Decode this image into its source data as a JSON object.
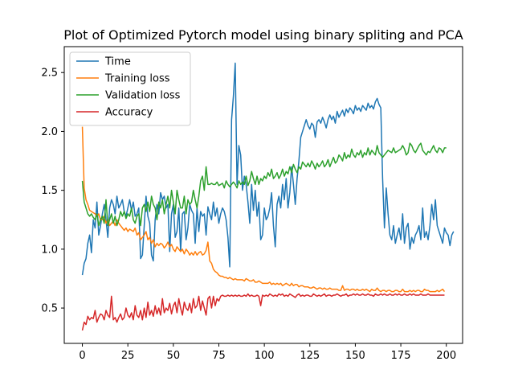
{
  "chart_data": {
    "type": "line",
    "title": "Plot of Optimized Pytorch model using binary spliting and PCA",
    "xlabel": "",
    "ylabel": "",
    "xlim": [
      -9.95,
      208.95
    ],
    "ylim": [
      0.2,
      2.72
    ],
    "xticks": [
      0,
      25,
      50,
      75,
      100,
      125,
      150,
      175,
      200
    ],
    "yticks": [
      0.5,
      1.0,
      1.5,
      2.0,
      2.5
    ],
    "ytick_labels": [
      "0.5",
      "1.0",
      "1.5",
      "2.0",
      "2.5"
    ],
    "grid": false,
    "legend_position": "top-left",
    "series": [
      {
        "name": "Time",
        "color": "#1f77b4",
        "values": [
          0.78,
          0.88,
          0.92,
          1.05,
          1.12,
          0.97,
          1.25,
          1.18,
          1.4,
          1.12,
          1.2,
          1.3,
          1.38,
          1.25,
          1.1,
          1.35,
          1.42,
          1.38,
          1.3,
          1.45,
          1.35,
          1.38,
          1.42,
          1.32,
          1.28,
          1.35,
          1.42,
          1.33,
          1.4,
          1.28,
          1.3,
          1.35,
          0.92,
          0.95,
          1.2,
          1.45,
          1.28,
          1.22,
          0.95,
          0.9,
          1.25,
          1.38,
          1.3,
          1.48,
          1.42,
          1.45,
          1.35,
          1.38,
          0.98,
          1.3,
          1.38,
          1.1,
          1.15,
          1.35,
          0.98,
          1.3,
          1.32,
          1.08,
          1.18,
          1.38,
          1.33,
          1.3,
          1.05,
          1.35,
          1.15,
          1.32,
          1.28,
          1.3,
          1.12,
          1.36,
          1.3,
          1.25,
          1.4,
          1.28,
          1.35,
          1.22,
          1.3,
          1.35,
          1.32,
          1.25,
          1.1,
          0.85,
          2.1,
          2.3,
          2.58,
          1.55,
          1.88,
          1.8,
          1.5,
          1.62,
          1.55,
          1.4,
          1.22,
          1.55,
          1.33,
          1.5,
          1.28,
          1.4,
          1.08,
          1.12,
          1.35,
          1.25,
          1.28,
          1.35,
          1.48,
          1.2,
          1.02,
          1.38,
          1.45,
          1.35,
          1.55,
          1.42,
          1.6,
          1.35,
          1.48,
          1.7,
          1.55,
          1.38,
          1.6,
          1.75,
          1.95,
          2.0,
          2.05,
          2.1,
          2.05,
          2.02,
          2.07,
          2.05,
          1.95,
          2.08,
          2.1,
          2.07,
          2.12,
          2.08,
          2.03,
          2.1,
          2.14,
          2.1,
          2.13,
          2.07,
          2.17,
          2.12,
          2.15,
          2.18,
          2.13,
          2.19,
          2.16,
          2.2,
          2.18,
          2.15,
          2.22,
          2.18,
          2.2,
          2.17,
          2.22,
          2.2,
          2.18,
          2.24,
          2.2,
          2.22,
          2.19,
          2.25,
          2.28,
          2.23,
          2.2,
          1.6,
          1.18,
          1.52,
          1.3,
          1.12,
          1.08,
          1.2,
          1.05,
          1.12,
          1.18,
          1.08,
          1.3,
          1.05,
          1.18,
          1.22,
          1.0,
          1.1,
          1.05,
          1.12,
          1.15,
          1.2,
          1.08,
          1.35,
          1.1,
          1.15,
          1.08,
          1.2,
          1.38,
          1.25,
          1.42,
          1.2,
          1.15,
          1.1,
          1.05,
          1.18,
          1.14,
          1.12,
          1.03,
          1.12,
          1.15
        ],
        "notes": ""
      },
      {
        "name": "Training loss",
        "color": "#ff7f0e",
        "values": [
          2.04,
          1.52,
          1.42,
          1.38,
          1.33,
          1.32,
          1.31,
          1.3,
          1.28,
          1.3,
          1.25,
          1.25,
          1.28,
          1.22,
          1.25,
          1.2,
          1.22,
          1.24,
          1.2,
          1.25,
          1.22,
          1.2,
          1.18,
          1.16,
          1.18,
          1.15,
          1.17,
          1.16,
          1.15,
          1.18,
          1.12,
          1.14,
          1.08,
          1.1,
          1.12,
          1.15,
          1.08,
          1.1,
          1.05,
          1.08,
          1.02,
          1.05,
          1.03,
          1.05,
          1.04,
          1.01,
          1.03,
          1.06,
          1.02,
          1.04,
          1.0,
          0.98,
          1.02,
          1.0,
          0.98,
          1.0,
          0.96,
          1.0,
          0.98,
          0.95,
          0.97,
          0.95,
          0.98,
          0.95,
          0.97,
          0.98,
          0.95,
          0.96,
          0.99,
          1.06,
          0.9,
          0.88,
          0.83,
          0.81,
          0.8,
          0.78,
          0.77,
          0.77,
          0.76,
          0.76,
          0.75,
          0.76,
          0.75,
          0.74,
          0.75,
          0.74,
          0.74,
          0.74,
          0.74,
          0.73,
          0.75,
          0.74,
          0.73,
          0.73,
          0.74,
          0.72,
          0.72,
          0.73,
          0.72,
          0.71,
          0.71,
          0.71,
          0.71,
          0.72,
          0.7,
          0.71,
          0.7,
          0.71,
          0.7,
          0.71,
          0.69,
          0.7,
          0.71,
          0.7,
          0.69,
          0.71,
          0.69,
          0.7,
          0.7,
          0.68,
          0.69,
          0.69,
          0.68,
          0.68,
          0.68,
          0.67,
          0.67,
          0.68,
          0.67,
          0.66,
          0.67,
          0.67,
          0.66,
          0.67,
          0.66,
          0.66,
          0.67,
          0.66,
          0.66,
          0.66,
          0.66,
          0.65,
          0.65,
          0.69,
          0.65,
          0.66,
          0.66,
          0.65,
          0.66,
          0.66,
          0.65,
          0.66,
          0.65,
          0.65,
          0.66,
          0.65,
          0.66,
          0.65,
          0.64,
          0.66,
          0.65,
          0.65,
          0.67,
          0.65,
          0.64,
          0.65,
          0.65,
          0.64,
          0.65,
          0.65,
          0.64,
          0.64,
          0.65,
          0.65,
          0.64,
          0.64,
          0.66,
          0.64,
          0.64,
          0.64,
          0.65,
          0.64,
          0.65,
          0.64,
          0.65,
          0.65,
          0.64,
          0.64,
          0.66,
          0.65,
          0.65,
          0.64,
          0.64,
          0.64,
          0.64,
          0.65,
          0.64,
          0.65,
          0.66,
          0.64
        ],
        "notes": ""
      },
      {
        "name": "Validation loss",
        "color": "#2ca02c",
        "values": [
          1.58,
          1.4,
          1.35,
          1.3,
          1.28,
          1.3,
          1.27,
          1.25,
          1.3,
          1.2,
          1.25,
          1.28,
          1.22,
          1.42,
          1.2,
          1.25,
          1.3,
          1.22,
          1.28,
          1.2,
          1.25,
          1.32,
          1.28,
          1.32,
          1.26,
          1.3,
          1.28,
          1.35,
          1.25,
          1.22,
          1.28,
          1.3,
          1.2,
          1.35,
          1.38,
          1.32,
          1.4,
          1.32,
          1.45,
          1.38,
          1.35,
          1.25,
          1.4,
          1.35,
          1.42,
          1.3,
          1.38,
          1.45,
          1.35,
          1.5,
          1.4,
          1.3,
          1.5,
          1.42,
          1.35,
          1.35,
          1.45,
          1.3,
          1.42,
          1.38,
          1.4,
          1.5,
          1.42,
          1.35,
          1.45,
          1.58,
          1.62,
          1.5,
          1.7,
          1.55,
          1.55,
          1.56,
          1.55,
          1.55,
          1.57,
          1.54,
          1.55,
          1.56,
          1.52,
          1.58,
          1.55,
          1.53,
          1.55,
          1.57,
          1.55,
          1.52,
          1.58,
          1.55,
          1.57,
          1.55,
          1.62,
          1.54,
          1.58,
          1.66,
          1.6,
          1.55,
          1.62,
          1.55,
          1.6,
          1.58,
          1.62,
          1.6,
          1.65,
          1.62,
          1.68,
          1.6,
          1.62,
          1.65,
          1.6,
          1.63,
          1.68,
          1.62,
          1.66,
          1.64,
          1.7,
          1.65,
          1.72,
          1.68,
          1.65,
          1.7,
          1.68,
          1.74,
          1.72,
          1.7,
          1.73,
          1.7,
          1.75,
          1.72,
          1.68,
          1.73,
          1.7,
          1.72,
          1.75,
          1.7,
          1.72,
          1.76,
          1.7,
          1.74,
          1.78,
          1.73,
          1.75,
          1.8,
          1.78,
          1.75,
          1.82,
          1.77,
          1.8,
          1.78,
          1.85,
          1.8,
          1.78,
          1.82,
          1.8,
          1.84,
          1.78,
          1.82,
          1.8,
          1.86,
          1.8,
          1.84,
          1.82,
          1.8,
          1.88,
          1.82,
          1.8,
          1.78,
          1.8,
          1.82,
          1.84,
          1.83,
          1.82,
          1.86,
          1.82,
          1.83,
          1.84,
          1.85,
          1.88,
          1.85,
          1.8,
          1.82,
          1.9,
          1.88,
          1.84,
          1.82,
          1.85,
          1.88,
          1.9,
          1.84,
          1.82,
          1.8,
          1.83,
          1.82,
          1.85,
          1.88,
          1.84,
          1.82,
          1.86,
          1.85,
          1.82,
          1.86,
          1.86
        ],
        "notes": ""
      },
      {
        "name": "Accuracy",
        "color": "#d62728",
        "values": [
          0.31,
          0.38,
          0.36,
          0.43,
          0.4,
          0.42,
          0.41,
          0.48,
          0.38,
          0.42,
          0.45,
          0.44,
          0.4,
          0.48,
          0.44,
          0.42,
          0.6,
          0.4,
          0.42,
          0.38,
          0.42,
          0.45,
          0.4,
          0.42,
          0.5,
          0.44,
          0.42,
          0.46,
          0.4,
          0.52,
          0.44,
          0.42,
          0.48,
          0.4,
          0.5,
          0.42,
          0.55,
          0.44,
          0.48,
          0.43,
          0.52,
          0.45,
          0.5,
          0.44,
          0.58,
          0.46,
          0.5,
          0.48,
          0.54,
          0.45,
          0.52,
          0.55,
          0.46,
          0.58,
          0.5,
          0.44,
          0.55,
          0.5,
          0.48,
          0.54,
          0.46,
          0.58,
          0.5,
          0.52,
          0.6,
          0.48,
          0.56,
          0.5,
          0.44,
          0.58,
          0.6,
          0.5,
          0.6,
          0.52,
          0.58,
          0.56,
          0.6,
          0.61,
          0.6,
          0.6,
          0.61,
          0.6,
          0.61,
          0.6,
          0.61,
          0.6,
          0.61,
          0.6,
          0.6,
          0.61,
          0.6,
          0.62,
          0.6,
          0.61,
          0.6,
          0.6,
          0.61,
          0.6,
          0.52,
          0.61,
          0.6,
          0.61,
          0.6,
          0.62,
          0.61,
          0.6,
          0.61,
          0.6,
          0.62,
          0.61,
          0.62,
          0.6,
          0.61,
          0.6,
          0.62,
          0.61,
          0.6,
          0.59,
          0.61,
          0.62,
          0.6,
          0.61,
          0.6,
          0.61,
          0.61,
          0.6,
          0.6,
          0.62,
          0.61,
          0.6,
          0.61,
          0.6,
          0.61,
          0.62,
          0.6,
          0.61,
          0.61,
          0.6,
          0.61,
          0.61,
          0.62,
          0.61,
          0.6,
          0.61,
          0.61,
          0.62,
          0.6,
          0.61,
          0.61,
          0.62,
          0.61,
          0.62,
          0.61,
          0.61,
          0.62,
          0.61,
          0.61,
          0.62,
          0.61,
          0.61,
          0.6,
          0.62,
          0.61,
          0.61,
          0.62,
          0.61,
          0.62,
          0.61,
          0.61,
          0.62,
          0.61,
          0.61,
          0.62,
          0.61,
          0.62,
          0.61,
          0.61,
          0.62,
          0.61,
          0.61,
          0.62,
          0.61,
          0.62,
          0.61,
          0.61,
          0.61,
          0.62,
          0.61,
          0.61,
          0.61,
          0.62,
          0.61,
          0.61,
          0.61,
          0.61,
          0.61,
          0.61,
          0.61,
          0.61,
          0.61
        ],
        "notes": ""
      }
    ]
  }
}
